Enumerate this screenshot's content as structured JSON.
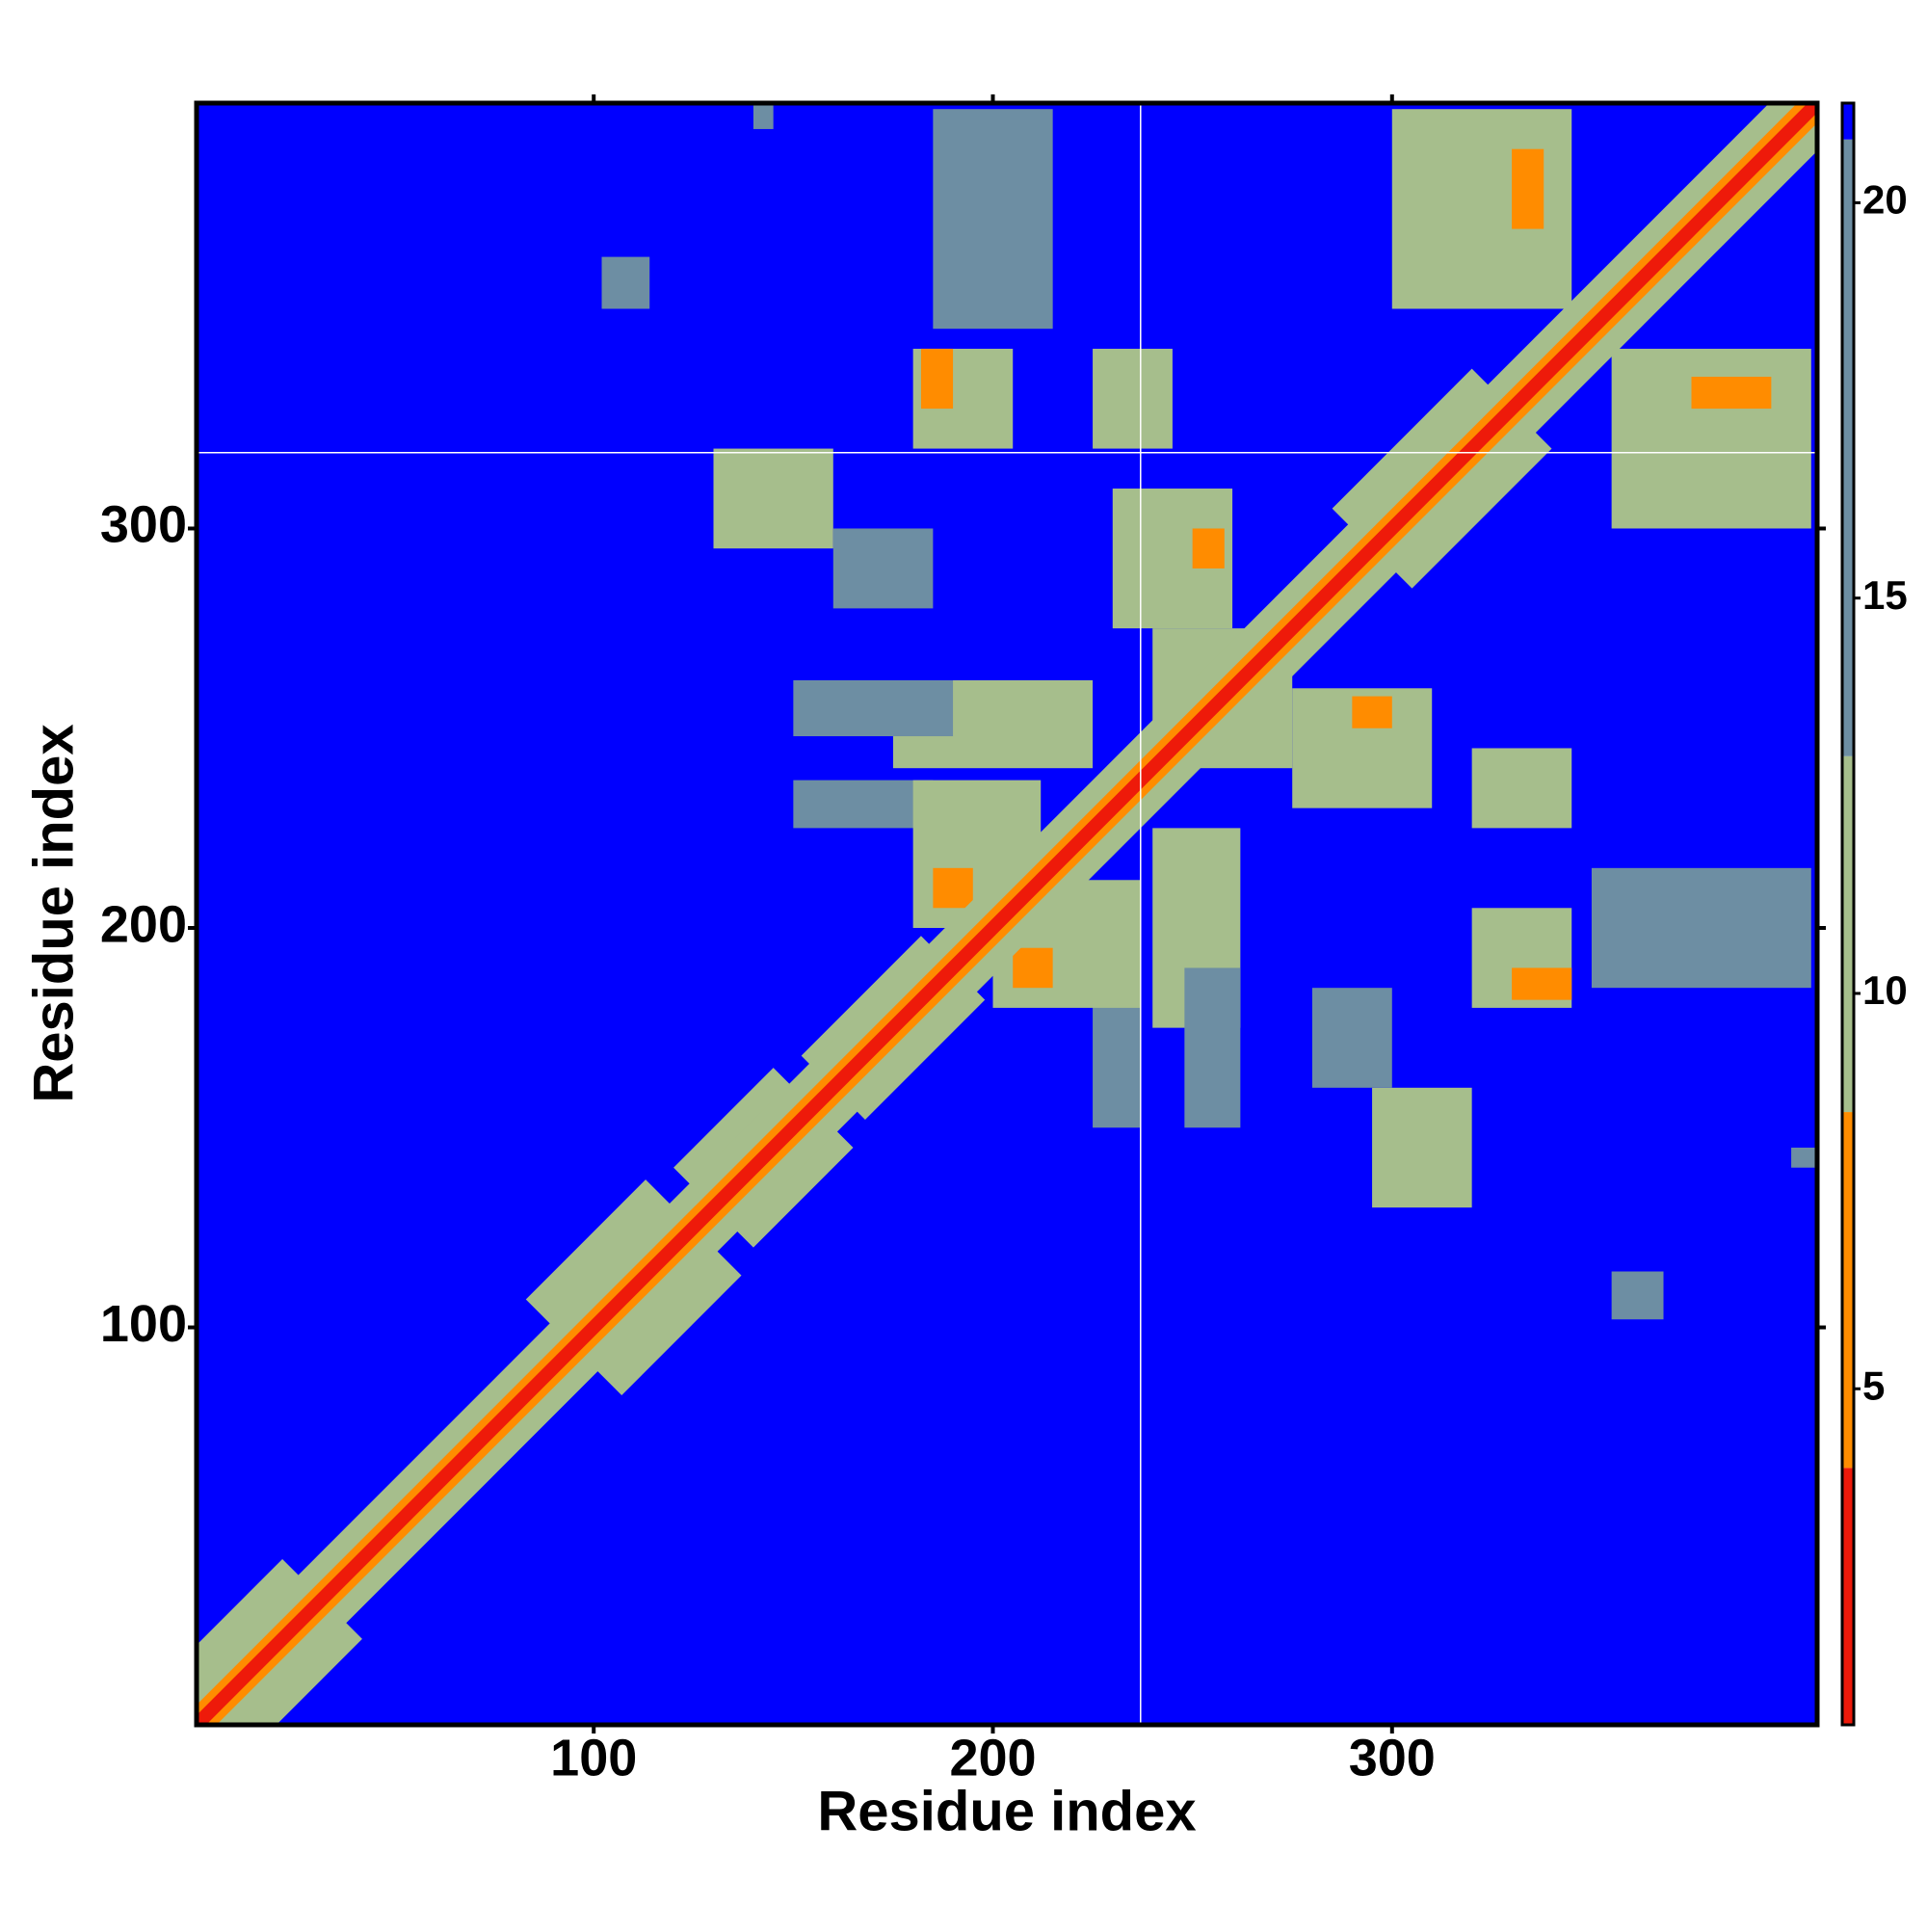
{
  "chart_data": {
    "type": "heatmap",
    "x_label": "Residue index",
    "y_label": "Residue index",
    "xlim": [
      0.5,
      406.5
    ],
    "ylim": [
      0.5,
      406.5
    ],
    "xticks": [
      100,
      200,
      300
    ],
    "yticks": [
      100,
      200,
      300
    ],
    "symmetric": true,
    "fill_value": 21,
    "reference_lines": {
      "x": 237,
      "y": 319,
      "color": "#ffffff"
    },
    "bands": [
      {
        "start": 1,
        "end": 32,
        "halfwidth": 10,
        "value": 11
      },
      {
        "start": 95,
        "end": 125,
        "halfwidth": 12,
        "value": 11
      },
      {
        "start": 130,
        "end": 155,
        "halfwidth": 10,
        "value": 11
      },
      {
        "start": 160,
        "end": 190,
        "halfwidth": 8,
        "value": 11
      },
      {
        "start": 295,
        "end": 330,
        "halfwidth": 10,
        "value": 11
      },
      {
        "start": 1,
        "end": 406,
        "halfwidth": 6,
        "value": 11
      },
      {
        "start": 1,
        "end": 406,
        "halfwidth": 2.5,
        "value": 6
      },
      {
        "start": 1,
        "end": 406,
        "halfwidth": 1.2,
        "value": 2
      }
    ],
    "patches": [
      {
        "x": [
          295,
          320
        ],
        "y": [
          130,
          160
        ],
        "value": 12
      },
      {
        "x": [
          320,
          345
        ],
        "y": [
          180,
          205
        ],
        "value": 12
      },
      {
        "x": [
          320,
          345
        ],
        "y": [
          225,
          245
        ],
        "value": 12
      },
      {
        "x": [
          350,
          405
        ],
        "y": [
          185,
          215
        ],
        "value": 14
      },
      {
        "x": [
          240,
          262
        ],
        "y": [
          175,
          225
        ],
        "value": 13
      },
      {
        "x": [
          280,
          300
        ],
        "y": [
          160,
          185
        ],
        "value": 14
      },
      {
        "x": [
          275,
          310
        ],
        "y": [
          230,
          260
        ],
        "value": 12
      },
      {
        "x": [
          240,
          270
        ],
        "y": [
          245,
          275
        ],
        "value": 11
      },
      {
        "x": [
          355,
          368
        ],
        "y": [
          102,
          114
        ],
        "value": 15
      },
      {
        "x": [
          400,
          406
        ],
        "y": [
          140,
          145
        ],
        "value": 14
      },
      {
        "x": [
          355,
          405
        ],
        "y": [
          300,
          345
        ],
        "value": 12
      },
      {
        "x": [
          248,
          262
        ],
        "y": [
          150,
          190
        ],
        "value": 15
      },
      {
        "x": [
          225,
          237
        ],
        "y": [
          150,
          185
        ],
        "value": 15
      },
      {
        "x": [
          200,
          237
        ],
        "y": [
          180,
          212
        ],
        "value": 12
      },
      {
        "x": [
          330,
          345
        ],
        "y": [
          182,
          190
        ],
        "value": 6
      },
      {
        "x": [
          205,
          215
        ],
        "y": [
          185,
          195
        ],
        "value": 6
      },
      {
        "x": [
          290,
          300
        ],
        "y": [
          250,
          258
        ],
        "value": 6
      },
      {
        "x": [
          375,
          395
        ],
        "y": [
          330,
          338
        ],
        "value": 6
      }
    ],
    "colorbar": {
      "lim": [
        0.75,
        21.26
      ],
      "ticks": [
        5,
        10,
        15,
        20
      ],
      "bins": [
        0.75,
        4,
        8.5,
        13,
        20.8,
        21.26
      ],
      "colors": [
        "#ee1a0a",
        "#ff8c00",
        "#a6be8c",
        "#6d8ea3",
        "#0000ff"
      ]
    }
  }
}
